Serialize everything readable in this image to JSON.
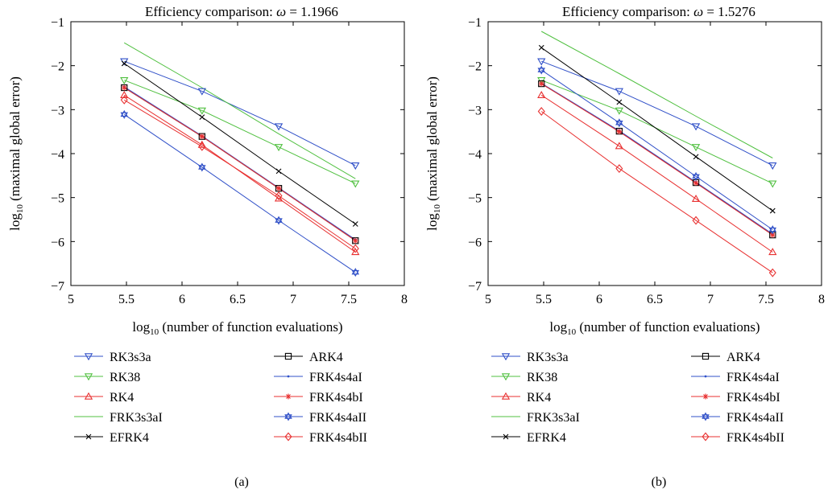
{
  "figure": {
    "panels": [
      {
        "title_prefix": "Efficiency comparison: ",
        "omega_symbol": "ω",
        "omega_value": " = 1.1966",
        "caption": "(a)"
      },
      {
        "title_prefix": "Efficiency comparison: ",
        "omega_symbol": "ω",
        "omega_value": " = 1.5276",
        "caption": "(b)"
      }
    ],
    "xlabel_log": "log",
    "xlabel_sub": "10",
    "xlabel_rest": " (number of function evaluations)",
    "ylabel_log": "log",
    "ylabel_sub": "10",
    "ylabel_rest": " (maximal global error)"
  },
  "chart_data": [
    {
      "type": "line",
      "title": "Efficiency comparison: ω = 1.1966",
      "xlabel": "log10 (number of function evaluations)",
      "ylabel": "log10 (maximal global error)",
      "xlim": [
        5,
        8
      ],
      "ylim": [
        -7,
        -1
      ],
      "xticks": [
        "5",
        "5.5",
        "6",
        "6.5",
        "7",
        "7.5",
        "8"
      ],
      "yticks": [
        "−1",
        "−2",
        "−3",
        "−4",
        "−5",
        "−6",
        "−7"
      ],
      "grid": false,
      "legend_position": "bottom",
      "series": [
        {
          "name": "RK3s3a",
          "color": "#3050c8",
          "marker": "tri-down",
          "x": [
            5.48,
            6.18,
            6.87,
            7.56
          ],
          "y": [
            -1.9,
            -2.58,
            -3.38,
            -4.27
          ]
        },
        {
          "name": "RK38",
          "color": "#50c040",
          "marker": "tri-down",
          "x": [
            5.48,
            6.18,
            6.87,
            7.56
          ],
          "y": [
            -2.33,
            -3.02,
            -3.85,
            -4.68
          ]
        },
        {
          "name": "RK4",
          "color": "#e83030",
          "marker": "tri-up",
          "x": [
            5.48,
            6.18,
            6.87,
            7.56
          ],
          "y": [
            -2.67,
            -3.8,
            -5.02,
            -6.24
          ]
        },
        {
          "name": "FRK3s3aI",
          "color": "#50c040",
          "marker": "none",
          "x": [
            5.48,
            6.18,
            6.87,
            7.56
          ],
          "y": [
            -1.48,
            -2.5,
            -3.55,
            -4.57
          ]
        },
        {
          "name": "EFRK4",
          "color": "#000000",
          "marker": "x",
          "x": [
            5.48,
            6.18,
            6.87,
            7.56
          ],
          "y": [
            -1.95,
            -3.17,
            -4.4,
            -5.6
          ]
        },
        {
          "name": "ARK4",
          "color": "#000000",
          "marker": "square",
          "x": [
            5.48,
            6.18,
            6.87,
            7.56
          ],
          "y": [
            -2.5,
            -3.61,
            -4.79,
            -5.98
          ]
        },
        {
          "name": "FRK4s4aI",
          "color": "#3050c8",
          "marker": "dot",
          "x": [
            5.48,
            6.18,
            6.87,
            7.56
          ],
          "y": [
            -2.48,
            -3.6,
            -4.78,
            -5.96
          ]
        },
        {
          "name": "FRK4s4bI",
          "color": "#e83030",
          "marker": "star",
          "x": [
            5.48,
            6.18,
            6.87,
            7.56
          ],
          "y": [
            -2.5,
            -3.61,
            -4.79,
            -5.98
          ]
        },
        {
          "name": "FRK4s4aII",
          "color": "#3050c8",
          "marker": "hexagram",
          "x": [
            5.48,
            6.18,
            6.87,
            7.56
          ],
          "y": [
            -3.11,
            -4.31,
            -5.52,
            -6.7
          ]
        },
        {
          "name": "FRK4s4bII",
          "color": "#e83030",
          "marker": "diamond",
          "x": [
            5.48,
            6.18,
            6.87,
            7.56
          ],
          "y": [
            -2.78,
            -3.84,
            -4.96,
            -6.16
          ]
        }
      ]
    },
    {
      "type": "line",
      "title": "Efficiency comparison: ω = 1.5276",
      "xlabel": "log10 (number of function evaluations)",
      "ylabel": "log10 (maximal global error)",
      "xlim": [
        5,
        8
      ],
      "ylim": [
        -7,
        -1
      ],
      "xticks": [
        "5",
        "5.5",
        "6",
        "6.5",
        "7",
        "7.5",
        "8"
      ],
      "yticks": [
        "−1",
        "−2",
        "−3",
        "−4",
        "−5",
        "−6",
        "−7"
      ],
      "grid": false,
      "legend_position": "bottom",
      "series": [
        {
          "name": "RK3s3a",
          "color": "#3050c8",
          "marker": "tri-down",
          "x": [
            5.48,
            6.18,
            6.87,
            7.56
          ],
          "y": [
            -1.9,
            -2.58,
            -3.38,
            -4.27
          ]
        },
        {
          "name": "RK38",
          "color": "#50c040",
          "marker": "tri-down",
          "x": [
            5.48,
            6.18,
            6.87,
            7.56
          ],
          "y": [
            -2.33,
            -3.02,
            -3.85,
            -4.68
          ]
        },
        {
          "name": "RK4",
          "color": "#e83030",
          "marker": "tri-up",
          "x": [
            5.48,
            6.18,
            6.87,
            7.56
          ],
          "y": [
            -2.67,
            -3.83,
            -5.03,
            -6.24
          ]
        },
        {
          "name": "FRK3s3aI",
          "color": "#50c040",
          "marker": "none",
          "x": [
            5.48,
            6.18,
            6.87,
            7.56
          ],
          "y": [
            -1.22,
            -2.18,
            -3.15,
            -4.1
          ]
        },
        {
          "name": "EFRK4",
          "color": "#000000",
          "marker": "x",
          "x": [
            5.48,
            6.18,
            6.87,
            7.56
          ],
          "y": [
            -1.59,
            -2.83,
            -4.07,
            -5.3
          ]
        },
        {
          "name": "ARK4",
          "color": "#000000",
          "marker": "square",
          "x": [
            5.48,
            6.18,
            6.87,
            7.56
          ],
          "y": [
            -2.41,
            -3.49,
            -4.66,
            -5.85
          ]
        },
        {
          "name": "FRK4s4aI",
          "color": "#3050c8",
          "marker": "dot",
          "x": [
            5.48,
            6.18,
            6.87,
            7.56
          ],
          "y": [
            -2.4,
            -3.48,
            -4.65,
            -5.83
          ]
        },
        {
          "name": "FRK4s4bI",
          "color": "#e83030",
          "marker": "star",
          "x": [
            5.48,
            6.18,
            6.87,
            7.56
          ],
          "y": [
            -2.41,
            -3.5,
            -4.67,
            -5.85
          ]
        },
        {
          "name": "FRK4s4aII",
          "color": "#3050c8",
          "marker": "hexagram",
          "x": [
            5.48,
            6.18,
            6.87,
            7.56
          ],
          "y": [
            -2.1,
            -3.3,
            -4.52,
            -5.73
          ]
        },
        {
          "name": "FRK4s4bII",
          "color": "#e83030",
          "marker": "diamond",
          "x": [
            5.48,
            6.18,
            6.87,
            7.56
          ],
          "y": [
            -3.04,
            -4.34,
            -5.52,
            -6.71
          ]
        }
      ]
    }
  ]
}
